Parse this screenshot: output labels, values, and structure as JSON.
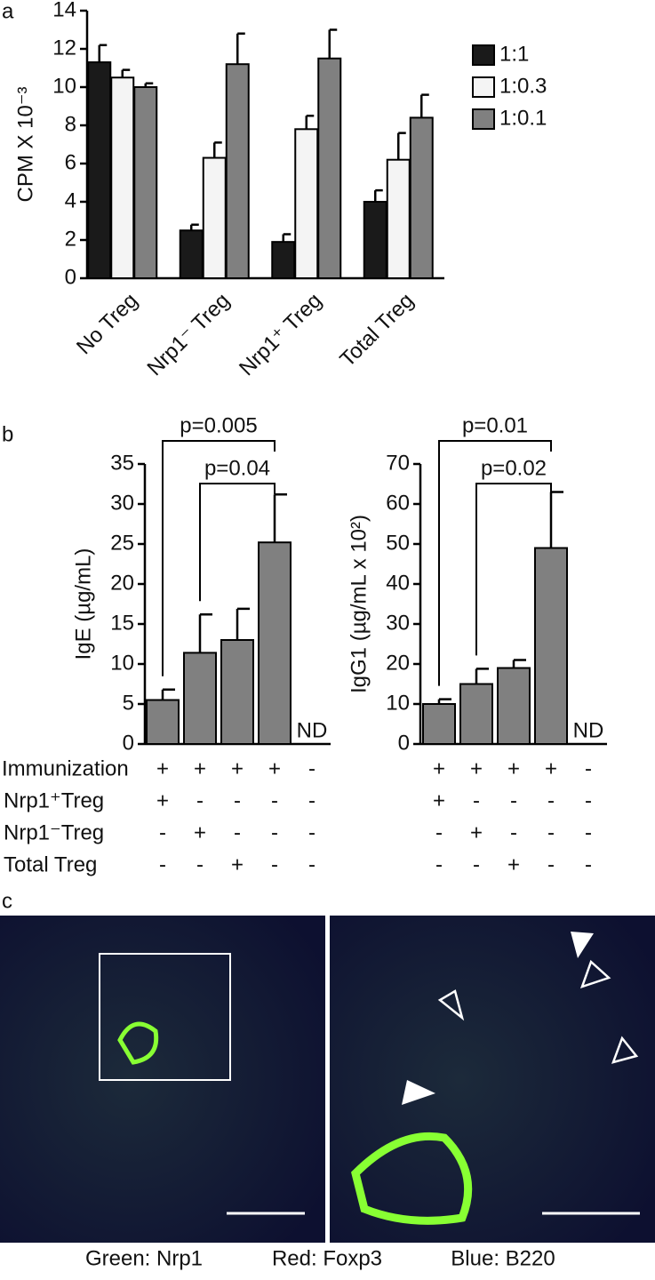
{
  "panel_labels": [
    "a",
    "b",
    "c"
  ],
  "chart_data": [
    {
      "type": "bar",
      "ylabel": "CPM X 10⁻³",
      "categories": [
        "No Treg",
        "Nrp1⁻ Treg",
        "Nrp1⁺ Treg",
        "Total Treg"
      ],
      "series": [
        {
          "name": "1:1",
          "color": "#1a1a1a",
          "values": [
            11.3,
            2.5,
            1.9,
            4.0
          ],
          "errors": [
            0.9,
            0.3,
            0.4,
            0.6
          ]
        },
        {
          "name": "1:0.3",
          "color": "#f4f4f4",
          "values": [
            10.5,
            6.3,
            7.8,
            6.2
          ],
          "errors": [
            0.4,
            0.8,
            0.7,
            1.4
          ]
        },
        {
          "name": "1:0.1",
          "color": "#808080",
          "values": [
            10.0,
            11.2,
            11.5,
            8.4
          ],
          "errors": [
            0.2,
            1.6,
            1.5,
            1.2
          ]
        }
      ],
      "ylim": [
        0,
        14
      ],
      "yticks": [
        0,
        2,
        4,
        6,
        8,
        10,
        12,
        14
      ],
      "legend": "upper right"
    },
    {
      "type": "bar",
      "ylabel": "IgE (µg/mL)",
      "categories": [
        null,
        null,
        null,
        null,
        null
      ],
      "color": "#808080",
      "values": [
        5.5,
        11.4,
        13,
        25.2,
        null
      ],
      "errors": [
        1.3,
        4.8,
        3.9,
        6,
        null
      ],
      "ylim": [
        0,
        35
      ],
      "yticks": [
        0,
        5,
        10,
        15,
        20,
        25,
        30,
        35
      ],
      "annotations": [
        "p=0.005",
        "p=0.04",
        "ND"
      ]
    },
    {
      "type": "bar",
      "ylabel": "IgG1 (µg/mL x 10²)",
      "categories": [
        null,
        null,
        null,
        null,
        null
      ],
      "color": "#808080",
      "values": [
        10,
        15,
        19,
        49,
        null
      ],
      "errors": [
        1.2,
        3.8,
        2,
        14,
        null
      ],
      "ylim": [
        0,
        70
      ],
      "yticks": [
        0,
        10,
        20,
        30,
        40,
        50,
        60,
        70
      ],
      "annotations": [
        "p=0.01",
        "p=0.02",
        "ND"
      ]
    }
  ],
  "table": {
    "rows": [
      {
        "label": "Immunization",
        "cells": [
          "+",
          "+",
          "+",
          "+",
          "-"
        ]
      },
      {
        "label": "Nrp1⁺Treg",
        "cells": [
          "+",
          "-",
          "-",
          "-",
          "-"
        ]
      },
      {
        "label": "Nrp1⁻Treg",
        "cells": [
          "-",
          "+",
          "-",
          "-",
          "-"
        ]
      },
      {
        "label": "Total Treg",
        "cells": [
          "-",
          "-",
          "+",
          "-",
          "-"
        ]
      }
    ]
  },
  "image_caption": [
    {
      "text": "Green: Nrp1",
      "color": "#7ed321"
    },
    {
      "text": "Red: Foxp3",
      "color": "#e8141b"
    },
    {
      "text": "Blue: B220",
      "color": "#1f2fd6"
    }
  ]
}
